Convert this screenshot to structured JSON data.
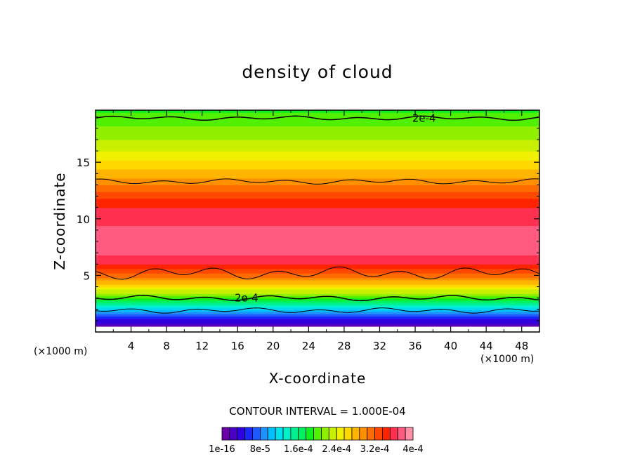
{
  "chart_data": {
    "type": "heatmap",
    "title": "density of cloud",
    "xlabel": "X-coordinate",
    "ylabel": "Z-coordinate",
    "x_unit_left": "(×1000 m)",
    "x_unit_right": "(×1000 m)",
    "xlim": [
      0,
      50
    ],
    "ylim": [
      0,
      19.6
    ],
    "x_ticks": [
      4,
      8,
      12,
      16,
      20,
      24,
      28,
      32,
      36,
      40,
      44,
      48
    ],
    "y_ticks": [
      5,
      10,
      15
    ],
    "contour_interval_label": "CONTOUR INTERVAL = 1.000E-04",
    "contour_labels": [
      {
        "text": "2e-4",
        "x": 37,
        "z": 18.9
      },
      {
        "text": "2e-4",
        "x": 17,
        "z": 3.0
      }
    ],
    "profile": [
      {
        "z": 0.5,
        "value": 0.0
      },
      {
        "z": 1.0,
        "value": 4e-05
      },
      {
        "z": 1.6,
        "value": 8e-05
      },
      {
        "z": 2.2,
        "value": 0.00013
      },
      {
        "z": 3.0,
        "value": 0.00019
      },
      {
        "z": 4.0,
        "value": 0.00026
      },
      {
        "z": 5.0,
        "value": 0.00031
      },
      {
        "z": 6.0,
        "value": 0.00035
      },
      {
        "z": 7.0,
        "value": 0.00037
      },
      {
        "z": 8.5,
        "value": 0.000375
      },
      {
        "z": 10.5,
        "value": 0.00036
      },
      {
        "z": 12.0,
        "value": 0.00033
      },
      {
        "z": 13.5,
        "value": 0.00029
      },
      {
        "z": 15.0,
        "value": 0.00026
      },
      {
        "z": 16.5,
        "value": 0.00023
      },
      {
        "z": 18.0,
        "value": 0.00021
      },
      {
        "z": 19.6,
        "value": 0.00019
      }
    ],
    "colorbar": {
      "colors": [
        "#6a00a8",
        "#4b00c8",
        "#3000e0",
        "#1828ff",
        "#1e5aff",
        "#1e90ff",
        "#00bfff",
        "#00e0ef",
        "#00f0c8",
        "#00f090",
        "#00f060",
        "#10f020",
        "#50f000",
        "#90f000",
        "#c8f000",
        "#f0f000",
        "#ffd800",
        "#ffb400",
        "#ff9000",
        "#ff6c00",
        "#ff4800",
        "#ff2400",
        "#ff3050",
        "#ff5a80",
        "#ff90a8"
      ],
      "tick_labels": [
        "1e-16",
        "8e-5",
        "1.6e-4",
        "2.4e-4",
        "3.2e-4",
        "4e-4"
      ]
    }
  }
}
